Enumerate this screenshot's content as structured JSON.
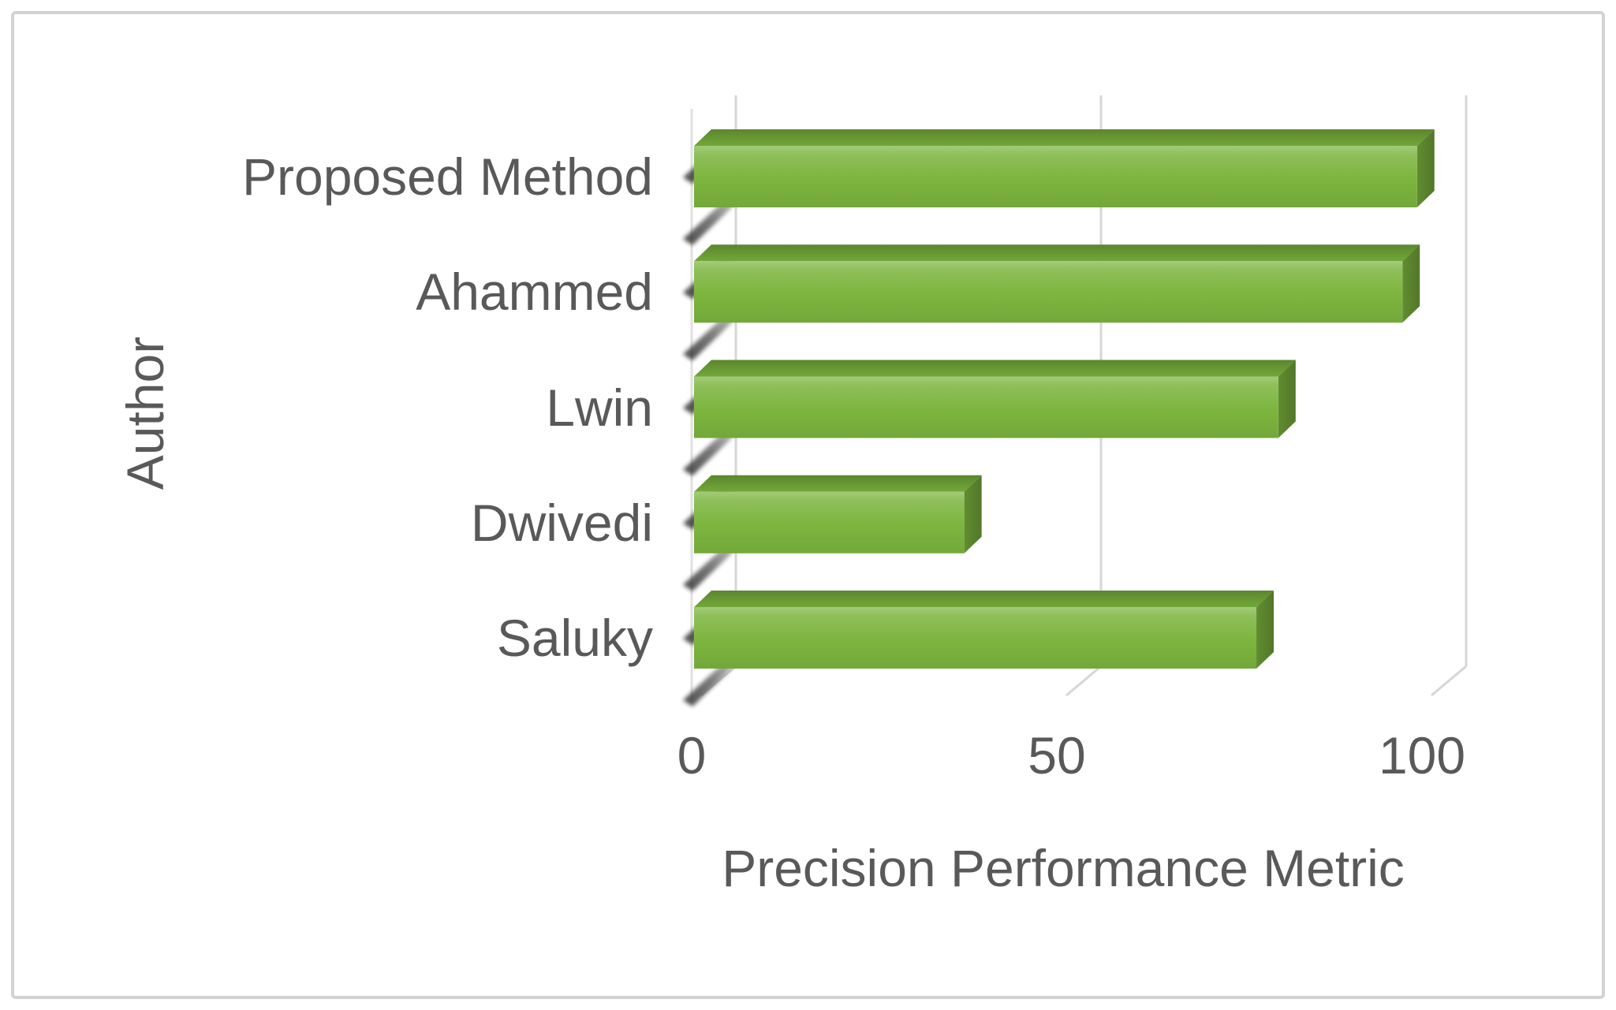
{
  "chart_data": {
    "type": "bar",
    "orientation": "horizontal",
    "style": "3d",
    "title": "",
    "categories": [
      "Proposed Method",
      "Ahammed",
      "Lwin",
      "Dwivedi",
      "Saluky"
    ],
    "values": [
      99,
      97,
      80,
      37,
      77
    ],
    "xlabel": "Precision Performance Metric",
    "ylabel": "Author",
    "xticks": [
      0,
      50,
      100
    ],
    "xlim": [
      0,
      120
    ],
    "grid": true,
    "legend_position": "none",
    "bar_color": "#7cb53e",
    "text_color": "#595959",
    "gridline_color": "#d6d6d6",
    "frame_border_color": "#d2d2d2",
    "background_color": "#ffffff"
  }
}
